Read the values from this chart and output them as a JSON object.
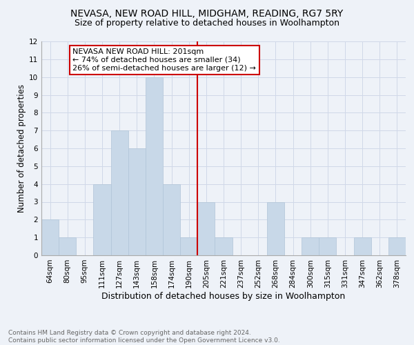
{
  "title": "NEVASA, NEW ROAD HILL, MIDGHAM, READING, RG7 5RY",
  "subtitle": "Size of property relative to detached houses in Woolhampton",
  "xlabel": "Distribution of detached houses by size in Woolhampton",
  "ylabel": "Number of detached properties",
  "categories": [
    "64sqm",
    "80sqm",
    "95sqm",
    "111sqm",
    "127sqm",
    "143sqm",
    "158sqm",
    "174sqm",
    "190sqm",
    "205sqm",
    "221sqm",
    "237sqm",
    "252sqm",
    "268sqm",
    "284sqm",
    "300sqm",
    "315sqm",
    "331sqm",
    "347sqm",
    "362sqm",
    "378sqm"
  ],
  "values": [
    2,
    1,
    0,
    4,
    7,
    6,
    10,
    4,
    1,
    3,
    1,
    0,
    0,
    3,
    0,
    1,
    1,
    0,
    1,
    0,
    1
  ],
  "bar_color": "#c8d8e8",
  "bar_edge_color": "#b0c4d8",
  "grid_color": "#d0d8e8",
  "background_color": "#eef2f8",
  "vline_x": 8.5,
  "vline_color": "#cc0000",
  "annotation_text": "NEVASA NEW ROAD HILL: 201sqm\n← 74% of detached houses are smaller (34)\n26% of semi-detached houses are larger (12) →",
  "annotation_box_color": "#ffffff",
  "annotation_border_color": "#cc0000",
  "ylim": [
    0,
    12
  ],
  "yticks": [
    0,
    1,
    2,
    3,
    4,
    5,
    6,
    7,
    8,
    9,
    10,
    11,
    12
  ],
  "footnote": "Contains HM Land Registry data © Crown copyright and database right 2024.\nContains public sector information licensed under the Open Government Licence v3.0.",
  "title_fontsize": 10,
  "subtitle_fontsize": 9,
  "xlabel_fontsize": 9,
  "ylabel_fontsize": 8.5,
  "tick_fontsize": 7.5,
  "annot_fontsize": 8,
  "footnote_fontsize": 6.5
}
